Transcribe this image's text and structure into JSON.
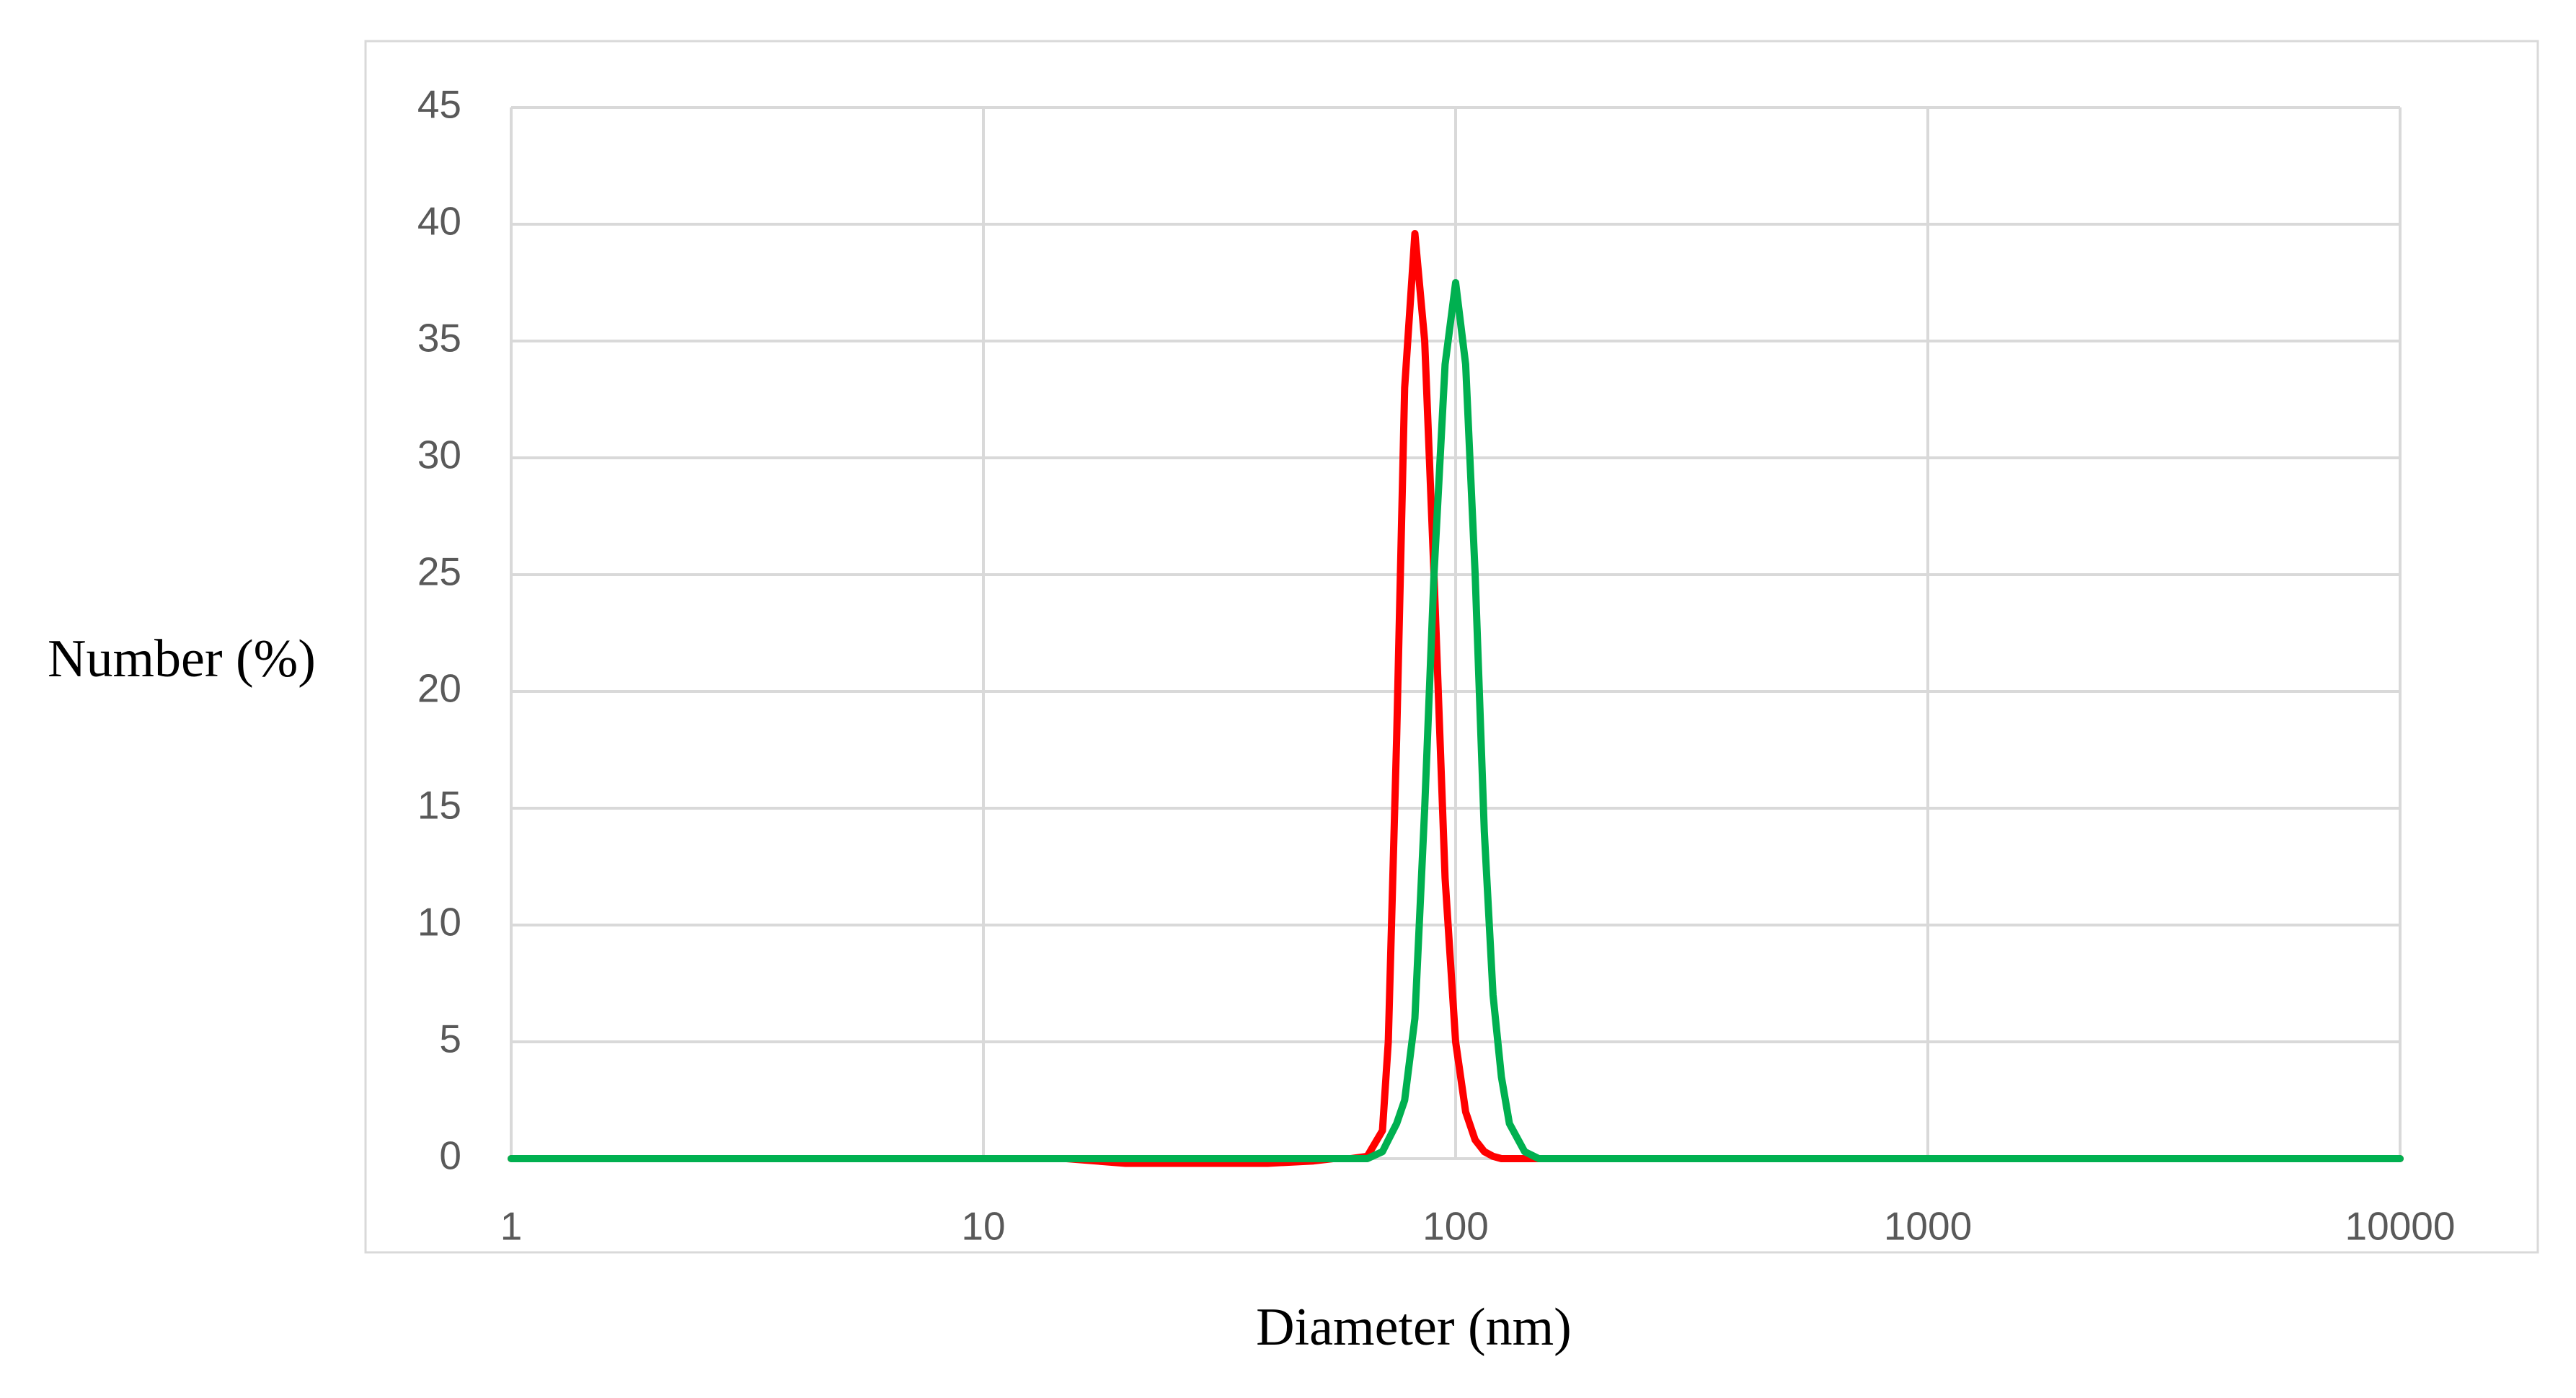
{
  "chart_data": {
    "type": "line",
    "x_label": "Diameter (nm)",
    "y_label": "Number (%)",
    "x": [
      1,
      10,
      15,
      20,
      30,
      40,
      50,
      55,
      60,
      65,
      70,
      72,
      75,
      78,
      82,
      86,
      90,
      95,
      100,
      105,
      110,
      115,
      120,
      125,
      130,
      140,
      150,
      200,
      1000,
      10000
    ],
    "series": [
      {
        "color": "#ff0000",
        "values": [
          0,
          0,
          0,
          -0.2,
          -0.2,
          -0.2,
          -0.1,
          0,
          0,
          0.1,
          1.2,
          5,
          18,
          33,
          39.6,
          35,
          25,
          12,
          5,
          2,
          0.8,
          0.3,
          0.1,
          0,
          0,
          0,
          0,
          0,
          0,
          0
        ]
      },
      {
        "color": "#00b050",
        "values": [
          0,
          0,
          0,
          0,
          0,
          0,
          0,
          0,
          0,
          0,
          0.3,
          0.8,
          1.5,
          2.5,
          6,
          15,
          25,
          34,
          37.5,
          34,
          25,
          14,
          7,
          3.5,
          1.5,
          0.3,
          0,
          0,
          0,
          0
        ]
      }
    ],
    "xlim": [
      1,
      10000
    ],
    "xticks": [
      1,
      10,
      100,
      1000,
      10000
    ],
    "xscale": "log",
    "ylim": [
      0,
      45
    ],
    "yticks": [
      0,
      5,
      10,
      15,
      20,
      25,
      30,
      35,
      40,
      45
    ],
    "grid": true
  }
}
